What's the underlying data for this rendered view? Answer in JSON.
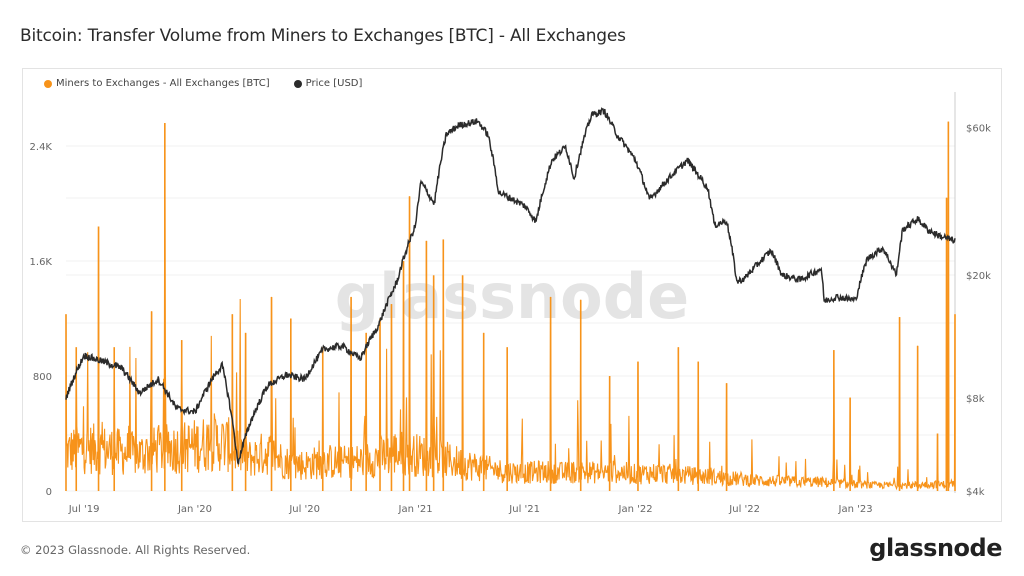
{
  "title": "Bitcoin: Transfer Volume from Miners to Exchanges [BTC] - All Exchanges",
  "footer": "© 2023 Glassnode. All Rights Reserved.",
  "logo": "glassnode",
  "watermark": "glassnode",
  "colors": {
    "volume": "#f7931a",
    "price": "#2b2b2b",
    "grid": "#efefef"
  },
  "chart_data": {
    "type": "line",
    "title": "Bitcoin: Transfer Volume from Miners to Exchanges [BTC] - All Exchanges",
    "legend_position": "top-left",
    "grid": true,
    "x_range": [
      "2019-06-01",
      "2023-06-15"
    ],
    "x_ticks": [
      {
        "date": "2019-07-01",
        "label": "Jul '19"
      },
      {
        "date": "2020-01-01",
        "label": "Jan '20"
      },
      {
        "date": "2020-07-01",
        "label": "Jul '20"
      },
      {
        "date": "2021-01-01",
        "label": "Jan '21"
      },
      {
        "date": "2021-07-01",
        "label": "Jul '21"
      },
      {
        "date": "2022-01-01",
        "label": "Jan '22"
      },
      {
        "date": "2022-07-01",
        "label": "Jul '22"
      },
      {
        "date": "2023-01-01",
        "label": "Jan '23"
      }
    ],
    "y_left": {
      "scale": "linear",
      "range": [
        0,
        2780
      ],
      "ticks": [
        {
          "v": 0,
          "label": "0"
        },
        {
          "v": 800,
          "label": "800"
        },
        {
          "v": 1600,
          "label": "1.6K"
        },
        {
          "v": 2400,
          "label": "2.4K"
        }
      ]
    },
    "y_right": {
      "scale": "log",
      "range": [
        4000,
        68000
      ],
      "ticks": [
        {
          "v": 4000,
          "label": "$4k"
        },
        {
          "v": 8000,
          "label": "$8k"
        },
        {
          "v": 20000,
          "label": "$20k"
        },
        {
          "v": 60000,
          "label": "$60k"
        }
      ]
    },
    "series": [
      {
        "name": "Miners to Exchanges - All Exchanges [BTC]",
        "axis": "left",
        "baseline_monthly": [
          [
            "2019-06-01",
            300
          ],
          [
            "2019-07-01",
            330
          ],
          [
            "2019-08-01",
            320
          ],
          [
            "2019-09-01",
            300
          ],
          [
            "2019-10-01",
            280
          ],
          [
            "2019-11-01",
            320
          ],
          [
            "2019-12-01",
            330
          ],
          [
            "2020-01-01",
            350
          ],
          [
            "2020-02-01",
            380
          ],
          [
            "2020-03-01",
            350
          ],
          [
            "2020-04-01",
            250
          ],
          [
            "2020-05-01",
            300
          ],
          [
            "2020-06-01",
            220
          ],
          [
            "2020-07-01",
            200
          ],
          [
            "2020-08-01",
            230
          ],
          [
            "2020-09-01",
            220
          ],
          [
            "2020-10-01",
            230
          ],
          [
            "2020-11-01",
            260
          ],
          [
            "2020-12-01",
            300
          ],
          [
            "2021-01-01",
            280
          ],
          [
            "2021-02-01",
            260
          ],
          [
            "2021-03-01",
            230
          ],
          [
            "2021-04-01",
            200
          ],
          [
            "2021-05-01",
            170
          ],
          [
            "2021-06-01",
            150
          ],
          [
            "2021-07-01",
            140
          ],
          [
            "2021-08-01",
            150
          ],
          [
            "2021-09-01",
            140
          ],
          [
            "2021-10-01",
            150
          ],
          [
            "2021-11-01",
            140
          ],
          [
            "2021-12-01",
            150
          ],
          [
            "2022-01-01",
            130
          ],
          [
            "2022-02-01",
            140
          ],
          [
            "2022-03-01",
            130
          ],
          [
            "2022-04-01",
            120
          ],
          [
            "2022-05-01",
            110
          ],
          [
            "2022-06-01",
            100
          ],
          [
            "2022-07-01",
            90
          ],
          [
            "2022-08-01",
            80
          ],
          [
            "2022-09-01",
            75
          ],
          [
            "2022-10-01",
            70
          ],
          [
            "2022-11-01",
            70
          ],
          [
            "2022-12-01",
            60
          ],
          [
            "2023-01-01",
            50
          ],
          [
            "2023-02-01",
            45
          ],
          [
            "2023-03-01",
            45
          ],
          [
            "2023-04-01",
            45
          ],
          [
            "2023-05-01",
            50
          ],
          [
            "2023-06-15",
            50
          ]
        ],
        "spikes": [
          [
            "2019-06-01",
            1230
          ],
          [
            "2019-06-18",
            1000
          ],
          [
            "2019-07-25",
            1840
          ],
          [
            "2019-08-20",
            1000
          ],
          [
            "2019-10-21",
            1250
          ],
          [
            "2019-11-12",
            2560
          ],
          [
            "2019-12-10",
            1050
          ],
          [
            "2020-03-03",
            1230
          ],
          [
            "2020-03-25",
            1100
          ],
          [
            "2020-05-07",
            1350
          ],
          [
            "2020-06-08",
            1200
          ],
          [
            "2020-07-31",
            1000
          ],
          [
            "2020-09-16",
            1350
          ],
          [
            "2020-10-11",
            1100
          ],
          [
            "2020-11-03",
            1200
          ],
          [
            "2020-11-22",
            1300
          ],
          [
            "2020-12-12",
            1600
          ],
          [
            "2020-12-22",
            2050
          ],
          [
            "2021-01-19",
            1740
          ],
          [
            "2021-01-31",
            1500
          ],
          [
            "2021-02-16",
            1750
          ],
          [
            "2021-03-20",
            1500
          ],
          [
            "2021-04-24",
            1100
          ],
          [
            "2021-06-02",
            1000
          ],
          [
            "2021-08-13",
            1350
          ],
          [
            "2021-10-02",
            1330
          ],
          [
            "2021-11-19",
            800
          ],
          [
            "2022-01-05",
            900
          ],
          [
            "2022-03-13",
            1000
          ],
          [
            "2022-04-15",
            900
          ],
          [
            "2022-06-01",
            750
          ],
          [
            "2022-11-26",
            980
          ],
          [
            "2022-12-23",
            650
          ],
          [
            "2023-03-15",
            1210
          ],
          [
            "2023-04-14",
            1010
          ],
          [
            "2023-05-17",
            400
          ],
          [
            "2023-06-01",
            2040
          ],
          [
            "2023-06-04",
            2570
          ],
          [
            "2023-06-15",
            1230
          ]
        ]
      },
      {
        "name": "Price [USD]",
        "axis": "right",
        "points": [
          [
            "2019-06-01",
            8000
          ],
          [
            "2019-07-01",
            11000
          ],
          [
            "2019-08-01",
            10500
          ],
          [
            "2019-09-01",
            10000
          ],
          [
            "2019-10-01",
            8300
          ],
          [
            "2019-11-01",
            9200
          ],
          [
            "2019-12-01",
            7400
          ],
          [
            "2020-01-01",
            7200
          ],
          [
            "2020-02-01",
            9400
          ],
          [
            "2020-02-15",
            10200
          ],
          [
            "2020-03-12",
            4900
          ],
          [
            "2020-04-01",
            6600
          ],
          [
            "2020-05-01",
            8800
          ],
          [
            "2020-06-01",
            9500
          ],
          [
            "2020-07-01",
            9200
          ],
          [
            "2020-08-01",
            11500
          ],
          [
            "2020-09-01",
            11800
          ],
          [
            "2020-10-01",
            10700
          ],
          [
            "2020-11-01",
            13800
          ],
          [
            "2020-12-01",
            19000
          ],
          [
            "2021-01-01",
            29000
          ],
          [
            "2021-01-10",
            40000
          ],
          [
            "2021-02-01",
            34000
          ],
          [
            "2021-02-21",
            57000
          ],
          [
            "2021-03-13",
            61000
          ],
          [
            "2021-04-14",
            63000
          ],
          [
            "2021-05-01",
            57000
          ],
          [
            "2021-05-19",
            37000
          ],
          [
            "2021-06-01",
            36000
          ],
          [
            "2021-07-01",
            33500
          ],
          [
            "2021-07-20",
            29800
          ],
          [
            "2021-08-15",
            47000
          ],
          [
            "2021-09-07",
            52000
          ],
          [
            "2021-09-21",
            41000
          ],
          [
            "2021-10-20",
            66000
          ],
          [
            "2021-11-10",
            68000
          ],
          [
            "2021-12-01",
            57000
          ],
          [
            "2022-01-01",
            47000
          ],
          [
            "2022-01-24",
            35000
          ],
          [
            "2022-03-28",
            47000
          ],
          [
            "2022-05-01",
            38000
          ],
          [
            "2022-05-12",
            29000
          ],
          [
            "2022-06-01",
            30000
          ],
          [
            "2022-06-18",
            19000
          ],
          [
            "2022-07-01",
            19500
          ],
          [
            "2022-08-14",
            24000
          ],
          [
            "2022-09-01",
            20000
          ],
          [
            "2022-10-01",
            19300
          ],
          [
            "2022-11-05",
            21000
          ],
          [
            "2022-11-10",
            16500
          ],
          [
            "2022-12-01",
            17000
          ],
          [
            "2023-01-01",
            16600
          ],
          [
            "2023-01-20",
            22500
          ],
          [
            "2023-02-15",
            24500
          ],
          [
            "2023-03-10",
            20000
          ],
          [
            "2023-03-20",
            28000
          ],
          [
            "2023-04-14",
            30400
          ],
          [
            "2023-05-01",
            28000
          ],
          [
            "2023-05-20",
            26800
          ],
          [
            "2023-06-15",
            25800
          ]
        ]
      }
    ]
  }
}
